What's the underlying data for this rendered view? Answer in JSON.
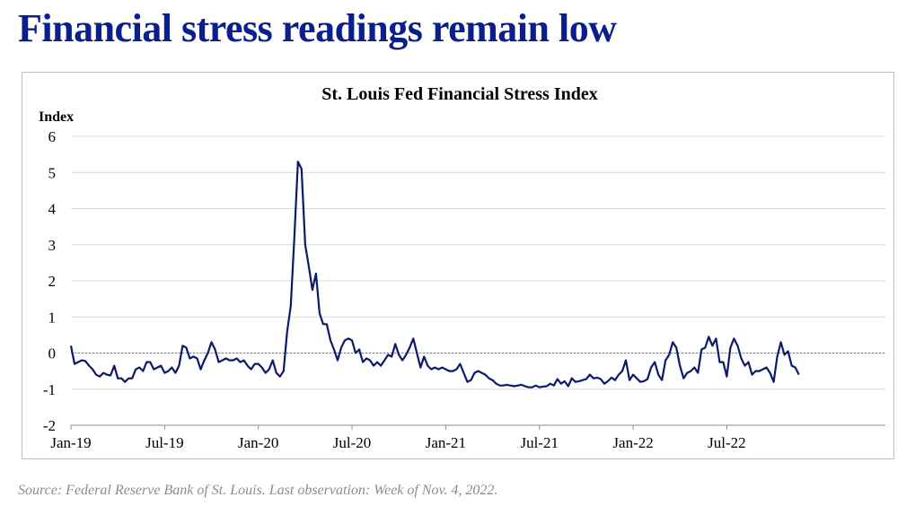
{
  "slide": {
    "title": "Financial stress readings remain low",
    "source": "Source: Federal Reserve Bank of St. Louis. Last observation: Week of Nov. 4, 2022."
  },
  "colors": {
    "title": "#0b1f8c",
    "line": "#0d1a6b",
    "zero_line": "#7f7f7f",
    "grid": "#d9d9d9"
  },
  "chart_data": {
    "type": "line",
    "title": "St. Louis Fed Financial Stress Index",
    "ylabel": "Index",
    "xlabel": "",
    "ylim": [
      -2,
      6
    ],
    "yticks": [
      6,
      5,
      4,
      3,
      2,
      1,
      0,
      -1,
      -2
    ],
    "grid": true,
    "zero_reference_line": "dotted",
    "x_ticks": [
      {
        "label": "Jan-19",
        "week": 0
      },
      {
        "label": "Jul-19",
        "week": 26
      },
      {
        "label": "Jan-20",
        "week": 52
      },
      {
        "label": "Jul-20",
        "week": 78
      },
      {
        "label": "Jan-21",
        "week": 104
      },
      {
        "label": "Jul-21",
        "week": 130
      },
      {
        "label": "Jan-22",
        "week": 156
      },
      {
        "label": "Jul-22",
        "week": 182
      }
    ],
    "series": [
      {
        "values": [
          0.2,
          -0.3,
          -0.25,
          -0.2,
          -0.22,
          -0.35,
          -0.45,
          -0.6,
          -0.65,
          -0.55,
          -0.6,
          -0.62,
          -0.35,
          -0.7,
          -0.7,
          -0.8,
          -0.7,
          -0.7,
          -0.45,
          -0.4,
          -0.5,
          -0.25,
          -0.25,
          -0.45,
          -0.4,
          -0.35,
          -0.55,
          -0.5,
          -0.4,
          -0.55,
          -0.35,
          0.2,
          0.15,
          -0.15,
          -0.1,
          -0.15,
          -0.45,
          -0.2,
          0.0,
          0.3,
          0.1,
          -0.25,
          -0.2,
          -0.15,
          -0.2,
          -0.2,
          -0.15,
          -0.25,
          -0.2,
          -0.35,
          -0.45,
          -0.3,
          -0.3,
          -0.4,
          -0.55,
          -0.45,
          -0.2,
          -0.55,
          -0.65,
          -0.5,
          0.6,
          1.3,
          3.2,
          5.3,
          5.1,
          3.0,
          2.4,
          1.75,
          2.2,
          1.1,
          0.8,
          0.8,
          0.35,
          0.1,
          -0.2,
          0.15,
          0.35,
          0.4,
          0.35,
          0.0,
          0.1,
          -0.25,
          -0.15,
          -0.2,
          -0.35,
          -0.25,
          -0.35,
          -0.2,
          -0.05,
          -0.1,
          0.25,
          -0.05,
          -0.2,
          -0.05,
          0.15,
          0.4,
          0.0,
          -0.4,
          -0.1,
          -0.35,
          -0.45,
          -0.4,
          -0.45,
          -0.4,
          -0.45,
          -0.5,
          -0.5,
          -0.45,
          -0.3,
          -0.55,
          -0.8,
          -0.75,
          -0.55,
          -0.5,
          -0.55,
          -0.6,
          -0.7,
          -0.75,
          -0.85,
          -0.9,
          -0.9,
          -0.88,
          -0.9,
          -0.92,
          -0.9,
          -0.88,
          -0.92,
          -0.95,
          -0.95,
          -0.9,
          -0.95,
          -0.93,
          -0.92,
          -0.85,
          -0.9,
          -0.72,
          -0.85,
          -0.78,
          -0.92,
          -0.7,
          -0.8,
          -0.78,
          -0.75,
          -0.72,
          -0.6,
          -0.7,
          -0.68,
          -0.72,
          -0.85,
          -0.78,
          -0.68,
          -0.75,
          -0.6,
          -0.5,
          -0.2,
          -0.75,
          -0.6,
          -0.7,
          -0.8,
          -0.78,
          -0.72,
          -0.4,
          -0.25,
          -0.6,
          -0.75,
          -0.2,
          -0.05,
          0.3,
          0.15,
          -0.35,
          -0.7,
          -0.55,
          -0.5,
          -0.4,
          -0.55,
          0.1,
          0.15,
          0.45,
          0.2,
          0.4,
          -0.25,
          -0.25,
          -0.65,
          0.15,
          0.4,
          0.2,
          -0.15,
          -0.35,
          -0.25,
          -0.6,
          -0.5,
          -0.5,
          -0.45,
          -0.4,
          -0.55,
          -0.8,
          -0.1,
          0.3,
          -0.05,
          0.05,
          -0.35,
          -0.4,
          -0.6
        ]
      }
    ]
  }
}
